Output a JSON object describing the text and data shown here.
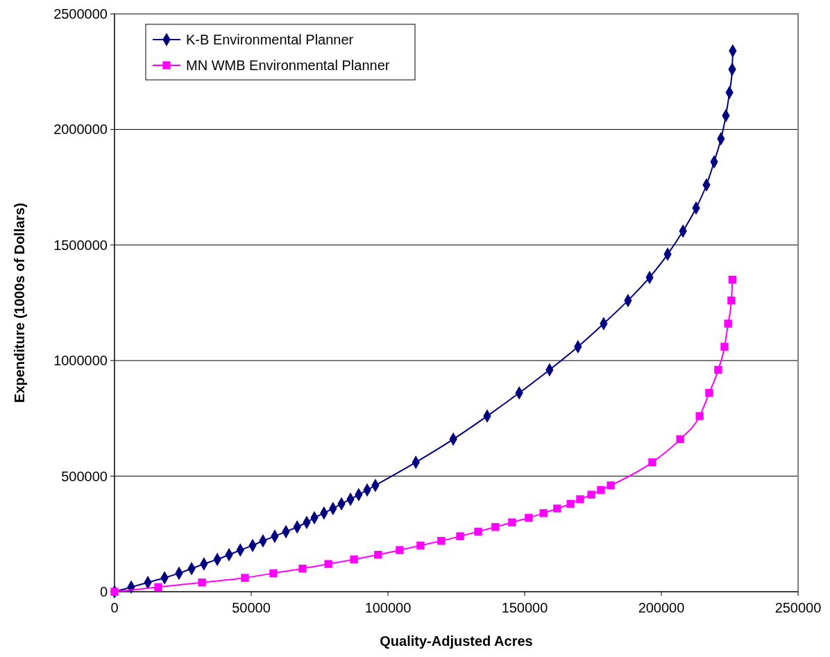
{
  "chart_data": {
    "type": "line",
    "xlabel": "Quality-Adjusted Acres",
    "ylabel": "Expenditure (1000s of Dollars)",
    "xlim": [
      0,
      250000
    ],
    "xticks": [
      0,
      50000,
      100000,
      150000,
      200000,
      250000
    ],
    "ylim": [
      0,
      2500000
    ],
    "yticks": [
      0,
      500000,
      1000000,
      1500000,
      2000000,
      2500000
    ],
    "grid": "y",
    "legend": "top left",
    "series": [
      {
        "name": "K-B Environmental Planner",
        "color": "#000080",
        "marker": "diamond",
        "x": [
          0,
          6100,
          12200,
          18300,
          23600,
          28200,
          32700,
          37600,
          41900,
          46000,
          50500,
          54300,
          58600,
          62700,
          66800,
          70300,
          73100,
          76600,
          79900,
          83000,
          86300,
          89300,
          92400,
          95400,
          110200,
          123900,
          136300,
          148000,
          159100,
          169500,
          178900,
          187800,
          195700,
          202300,
          207900,
          212700,
          216500,
          219300,
          221800,
          223600,
          224900,
          225900,
          226100
        ],
        "values": [
          0,
          20000,
          40000,
          60000,
          80000,
          100000,
          120000,
          140000,
          160000,
          180000,
          200000,
          220000,
          240000,
          260000,
          280000,
          300000,
          320000,
          340000,
          360000,
          380000,
          400000,
          420000,
          440000,
          460000,
          560000,
          660000,
          760000,
          860000,
          960000,
          1060000,
          1160000,
          1260000,
          1360000,
          1460000,
          1560000,
          1660000,
          1760000,
          1860000,
          1960000,
          2060000,
          2160000,
          2260000,
          2340000
        ]
      },
      {
        "name": "MN WMB Environmental Planner",
        "color": "#ff00ff",
        "marker": "square",
        "x": [
          0,
          16000,
          32000,
          47700,
          58100,
          68800,
          78200,
          87600,
          96400,
          104300,
          111900,
          119500,
          126400,
          133000,
          139300,
          145400,
          151500,
          156900,
          161900,
          166800,
          170300,
          174400,
          177900,
          181500,
          196700,
          206900,
          214000,
          217500,
          220800,
          223100,
          224400,
          225600,
          226000
        ],
        "values": [
          0,
          20000,
          40000,
          60000,
          80000,
          100000,
          120000,
          140000,
          160000,
          180000,
          200000,
          220000,
          240000,
          260000,
          280000,
          300000,
          320000,
          340000,
          360000,
          380000,
          400000,
          420000,
          440000,
          460000,
          560000,
          660000,
          760000,
          860000,
          960000,
          1060000,
          1160000,
          1260000,
          1350000
        ]
      }
    ]
  }
}
